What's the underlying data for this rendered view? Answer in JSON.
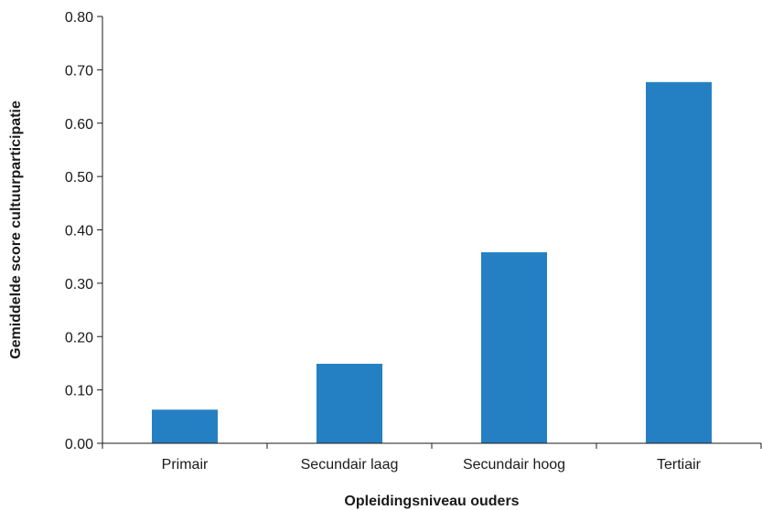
{
  "chart_data": {
    "type": "bar",
    "title": "",
    "xlabel": "Opleidingsniveau ouders",
    "ylabel": "Gemiddelde score cultuurparticipatie",
    "categories": [
      "Primair",
      "Secundair laag",
      "Secundair hoog",
      "Tertiair"
    ],
    "values": [
      0.063,
      0.149,
      0.358,
      0.677
    ],
    "ylim": [
      0,
      0.8
    ],
    "yticks": [
      "0.00",
      "0.10",
      "0.20",
      "0.30",
      "0.40",
      "0.50",
      "0.60",
      "0.70",
      "0.80"
    ],
    "bar_color": "#2580c3",
    "axis_color": "#1a1a1a",
    "grid": false,
    "legend": "none"
  }
}
